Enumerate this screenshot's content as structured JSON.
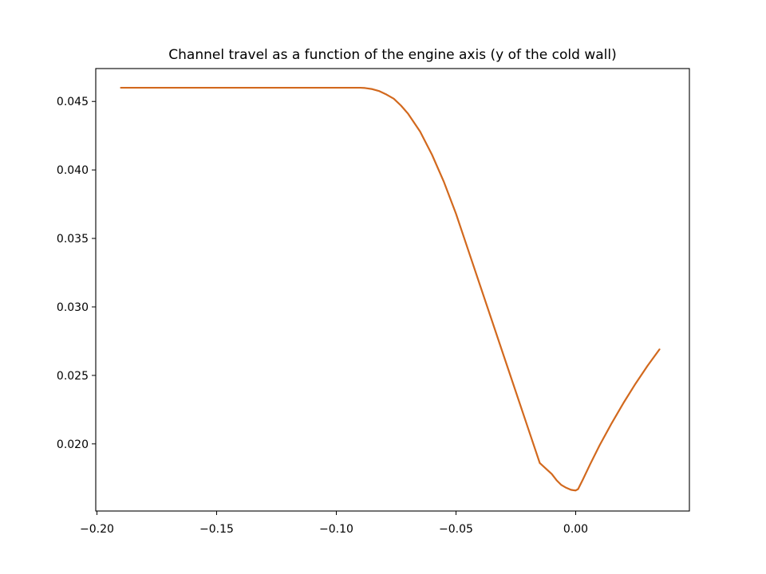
{
  "chart_data": {
    "type": "line",
    "title": "Channel travel as a function of the engine axis (y of the cold wall)",
    "xlabel": "",
    "ylabel": "",
    "xlim": [
      -0.2005,
      0.0475
    ],
    "ylim": [
      0.0151,
      0.0474
    ],
    "xticks": [
      -0.2,
      -0.15,
      -0.1,
      -0.05,
      0.0
    ],
    "xtick_labels": [
      "−0.20",
      "−0.15",
      "−0.10",
      "−0.05",
      "0.00"
    ],
    "yticks": [
      0.02,
      0.025,
      0.03,
      0.035,
      0.04,
      0.045
    ],
    "ytick_labels": [
      "0.020",
      "0.025",
      "0.030",
      "0.035",
      "0.040",
      "0.045"
    ],
    "grid": false,
    "legend": "none",
    "series": [
      {
        "color": "#d2691e",
        "x": [
          -0.19,
          -0.15,
          -0.12,
          -0.1,
          -0.09,
          -0.088,
          -0.085,
          -0.082,
          -0.079,
          -0.076,
          -0.073,
          -0.07,
          -0.065,
          -0.06,
          -0.055,
          -0.05,
          -0.045,
          -0.04,
          -0.035,
          -0.03,
          -0.025,
          -0.02,
          -0.015,
          -0.01,
          -0.008,
          -0.006,
          -0.004,
          -0.002,
          -0.001,
          0.0,
          0.001,
          0.003,
          0.006,
          0.01,
          0.015,
          0.02,
          0.025,
          0.03,
          0.035
        ],
        "y": [
          0.046,
          0.046,
          0.046,
          0.046,
          0.046,
          0.04598,
          0.0459,
          0.04575,
          0.0455,
          0.0452,
          0.0447,
          0.0441,
          0.0428,
          0.0411,
          0.0391,
          0.0368,
          0.0342,
          0.0316,
          0.029,
          0.0264,
          0.0238,
          0.0212,
          0.0186,
          0.0178,
          0.01735,
          0.017,
          0.0168,
          0.01665,
          0.01662,
          0.0166,
          0.0167,
          0.0174,
          0.0185,
          0.0199,
          0.0215,
          0.023,
          0.0244,
          0.0257,
          0.0269
        ]
      }
    ]
  }
}
